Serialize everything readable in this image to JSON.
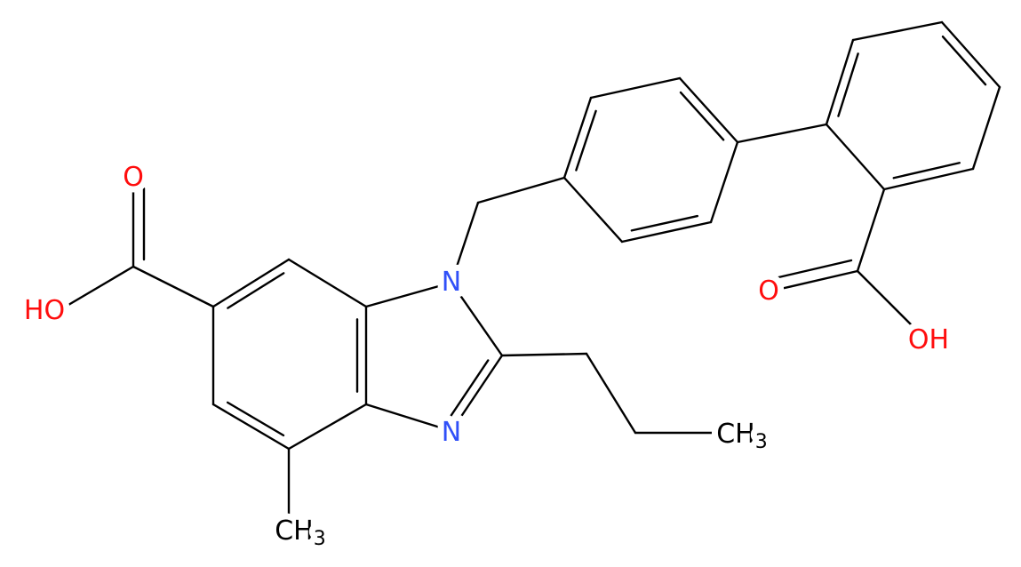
{
  "atoms": [
    {
      "label": "O"
    },
    {
      "label": "HO"
    },
    {
      "label": "N"
    },
    {
      "label": "N"
    },
    {
      "label": "CH",
      "sub": "3"
    },
    {
      "label": "CH",
      "sub": "3"
    },
    {
      "label": "O"
    },
    {
      "label": "OH"
    }
  ]
}
